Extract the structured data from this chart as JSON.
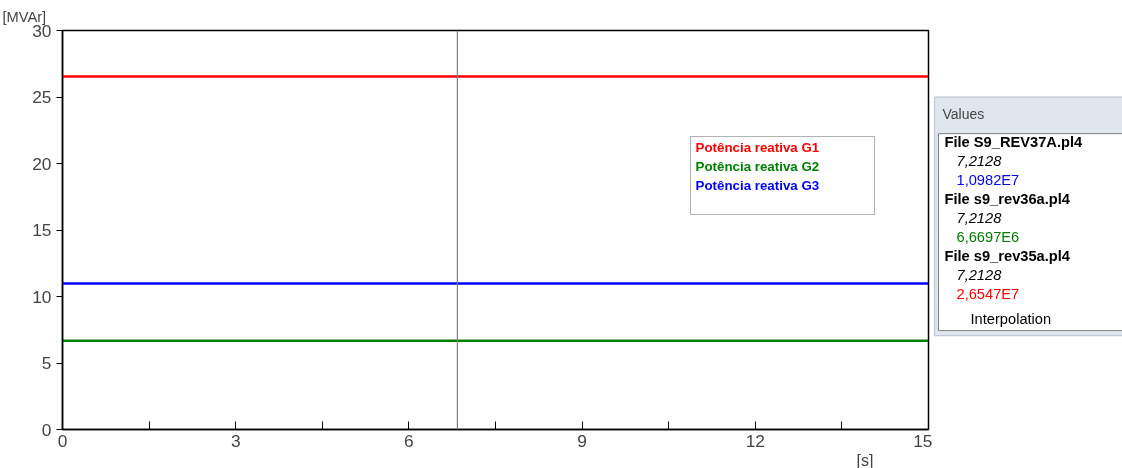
{
  "chart_data": [
    {
      "type": "line",
      "xlabel": "[s]",
      "ylabel": "[MVAr]",
      "x": [
        0,
        15
      ],
      "series": [
        {
          "name": "Potência reativa G1",
          "color": "#ff0000",
          "values": [
            26.55,
            26.55
          ]
        },
        {
          "name": "Potência reativa G2",
          "color": "#008000",
          "values": [
            6.67,
            6.67
          ]
        },
        {
          "name": "Potência reativa G3",
          "color": "#0000ff",
          "values": [
            10.98,
            10.98
          ]
        }
      ],
      "xlim": [
        0,
        15
      ],
      "ylim": [
        0,
        30
      ],
      "xticks": [
        0,
        {
          "value": 1.5,
          "label": null
        },
        3,
        {
          "value": 4.5,
          "label": null
        },
        6,
        {
          "value": 7.5,
          "label": null
        },
        9,
        {
          "value": 10.5,
          "label": null
        },
        12,
        {
          "value": 13.5,
          "label": null
        },
        15
      ],
      "yticks": [
        0,
        5,
        10,
        15,
        20,
        25,
        30
      ],
      "ref_lines": [
        {
          "axis": "x",
          "value": 6.84,
          "label": null,
          "color": "#808080"
        }
      ],
      "grid": false,
      "legend": "top right",
      "marker": "none",
      "line_style": "solid"
    },
    {
      "type": "other",
      "title": "Values",
      "annotations": [
        "File S9_REV37A.pl4",
        "7,2128",
        "1,0982E7",
        "File s9_rev36a.pl4",
        "7,2128",
        "6,6697E6",
        "File s9_rev35a.pl4",
        "7,2128",
        "2,6547E7",
        "Interpolation"
      ],
      "colors": [
        "#000000",
        "#000000",
        "#0000ff",
        "#000000",
        "#000000",
        "#008000",
        "#000000",
        "#000000",
        "#ff0000",
        "#000000"
      ]
    }
  ]
}
